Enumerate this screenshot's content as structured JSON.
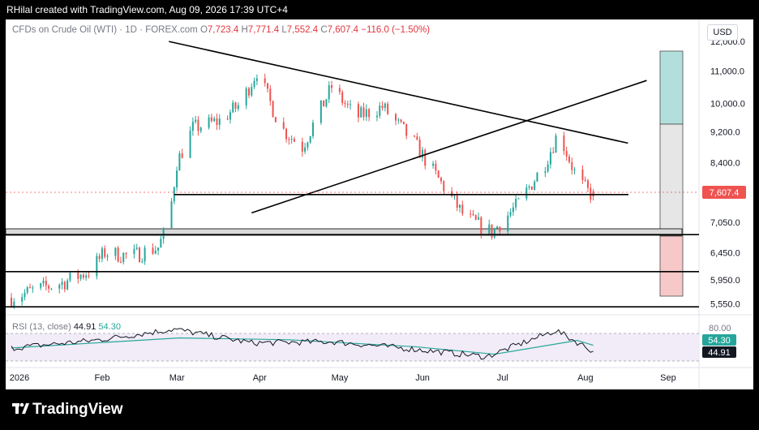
{
  "header": {
    "credit": "RHilal created with TradingView.com, Aug 09, 2026 17:39 UTC+4"
  },
  "legend": {
    "instrument": "CFDs on Crude Oil (WTI) · 1D · FOREX.com",
    "open_label": "O",
    "open": "7,723.4",
    "high_label": "H",
    "high": "7,771.4",
    "low_label": "L",
    "low": "7,552.4",
    "close_label": "C",
    "close": "7,607.4",
    "change": "−116.0 (−1.50%)"
  },
  "currency_button": "USD",
  "price_axis": {
    "ticks": [
      "12,000.0",
      "11,000.0",
      "10,000.0",
      "9,200.0",
      "8,400.0",
      "7,607.4",
      "7,050.0",
      "6,450.0",
      "5,950.0",
      "5,550.0"
    ],
    "current_price_label": "7,607.4"
  },
  "time_axis": {
    "labels": [
      "2026",
      "Feb",
      "Mar",
      "Apr",
      "May",
      "Jun",
      "Jul",
      "Aug",
      "Sep"
    ]
  },
  "rsi": {
    "label": "RSI (13, close)",
    "value": "44.91",
    "ma_value": "54.30",
    "upper_band": "80.00",
    "value_badge": "44.91",
    "ma_badge": "54.30"
  },
  "brand": {
    "name": "TradingView"
  },
  "colors": {
    "up": "#26a69a",
    "down": "#ef5350",
    "rsi_line": "#131722",
    "rsi_ma": "#26a69a",
    "rsi_band": "#ede7f6",
    "price_badge": "#ef5350",
    "target_zone": "#b2dfdb",
    "stop_zone": "#ef9a9a"
  },
  "chart_data": {
    "type": "candlestick",
    "title": "CFDs on Crude Oil (WTI) · 1D · FOREX.com",
    "x_range": [
      "2026-01-01",
      "2026-09-15"
    ],
    "y_scale": "log",
    "y_range": [
      5450,
      12500
    ],
    "approx_daily_closes": [
      {
        "x": "2026-01-01",
        "y": 5650
      },
      {
        "x": "2026-01-10",
        "y": 5780
      },
      {
        "x": "2026-01-20",
        "y": 5900
      },
      {
        "x": "2026-01-30",
        "y": 6100
      },
      {
        "x": "2026-02-05",
        "y": 6450
      },
      {
        "x": "2026-02-15",
        "y": 6380
      },
      {
        "x": "2026-02-25",
        "y": 6550
      },
      {
        "x": "2026-03-01",
        "y": 7050
      },
      {
        "x": "2026-03-04",
        "y": 8400
      },
      {
        "x": "2026-03-10",
        "y": 9300
      },
      {
        "x": "2026-03-20",
        "y": 9500
      },
      {
        "x": "2026-03-28",
        "y": 10000
      },
      {
        "x": "2026-04-03",
        "y": 11000
      },
      {
        "x": "2026-04-12",
        "y": 9300
      },
      {
        "x": "2026-04-20",
        "y": 8800
      },
      {
        "x": "2026-05-01",
        "y": 10500
      },
      {
        "x": "2026-05-10",
        "y": 9600
      },
      {
        "x": "2026-05-20",
        "y": 9900
      },
      {
        "x": "2026-06-01",
        "y": 8900
      },
      {
        "x": "2026-06-10",
        "y": 8000
      },
      {
        "x": "2026-06-20",
        "y": 7150
      },
      {
        "x": "2026-06-30",
        "y": 6850
      },
      {
        "x": "2026-07-10",
        "y": 7450
      },
      {
        "x": "2026-07-20",
        "y": 8400
      },
      {
        "x": "2026-07-25",
        "y": 9200
      },
      {
        "x": "2026-08-01",
        "y": 8000
      },
      {
        "x": "2026-08-05",
        "y": 7723
      },
      {
        "x": "2026-08-07",
        "y": 7607
      }
    ],
    "last_candle": {
      "open": 7723.4,
      "high": 7771.4,
      "low": 7552.4,
      "close": 7607.4
    },
    "horizontal_levels": [
      7650,
      6800,
      6100,
      5500
    ],
    "resistance_trendline": [
      {
        "x": "2026-03-01",
        "y": 12000
      },
      {
        "x": "2026-08-20",
        "y": 8900
      }
    ],
    "support_trendline": [
      {
        "x": "2026-04-01",
        "y": 7250
      },
      {
        "x": "2026-08-27",
        "y": 10700
      }
    ],
    "rsi_series": [
      {
        "x": "2026-01-01",
        "y": 50
      },
      {
        "x": "2026-02-01",
        "y": 62
      },
      {
        "x": "2026-03-03",
        "y": 80
      },
      {
        "x": "2026-04-01",
        "y": 58
      },
      {
        "x": "2026-05-01",
        "y": 60
      },
      {
        "x": "2026-06-01",
        "y": 48
      },
      {
        "x": "2026-06-28",
        "y": 36
      },
      {
        "x": "2026-07-24",
        "y": 78
      },
      {
        "x": "2026-08-07",
        "y": 44.91
      }
    ],
    "rsi_ma_series": [
      {
        "x": "2026-01-01",
        "y": 50
      },
      {
        "x": "2026-03-05",
        "y": 66
      },
      {
        "x": "2026-04-15",
        "y": 63
      },
      {
        "x": "2026-06-01",
        "y": 52
      },
      {
        "x": "2026-07-01",
        "y": 40
      },
      {
        "x": "2026-08-01",
        "y": 62
      },
      {
        "x": "2026-08-07",
        "y": 54.3
      }
    ],
    "rsi_range": [
      20,
      90
    ]
  }
}
